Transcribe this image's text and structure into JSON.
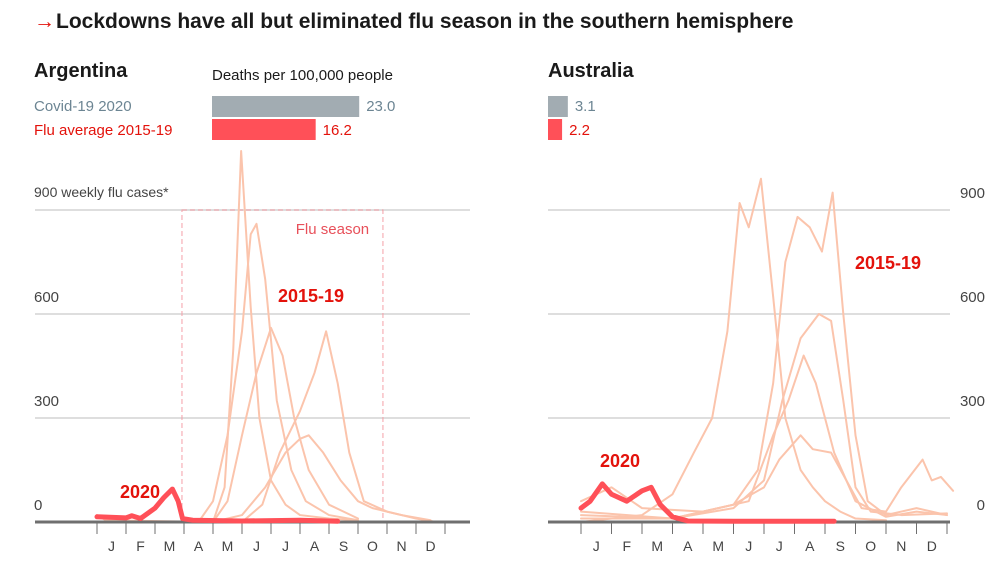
{
  "title": "Lockdowns have all but eliminated flu season in the southern hemisphere",
  "colors": {
    "covid": "#a2acb2",
    "covid_text": "#6c8593",
    "flu": "#ff5058",
    "flu_text": "#e3120b",
    "past": "#fbc4ac",
    "grid": "#dedede",
    "axis": "#6f6f6f"
  },
  "deaths_heading": "Deaths per 100,000 people",
  "legend": {
    "covid": "Covid-19 2020",
    "flu": "Flu average 2015-19"
  },
  "y_caption": "900 weekly flu cases*",
  "chart_data": [
    {
      "type": "line",
      "country": "Argentina",
      "deaths": {
        "covid": 23.0,
        "covid_label": "23.0",
        "flu": 16.2,
        "flu_label": "16.2"
      },
      "ylim": [
        0,
        1100
      ],
      "yticks": [
        "0",
        "300",
        "600",
        "900"
      ],
      "months": [
        "J",
        "F",
        "M",
        "A",
        "M",
        "J",
        "J",
        "A",
        "S",
        "O",
        "N",
        "D"
      ],
      "flu_season": {
        "label": "Flu season",
        "range": [
          2.93,
          9.86
        ]
      },
      "labels": {
        "past": "2015-19",
        "current": "2020"
      },
      "past_series": [
        [
          [
            0,
            20
          ],
          [
            0.3,
            5
          ],
          [
            4,
            0
          ],
          [
            4.4,
            100
          ],
          [
            4.7,
            500
          ],
          [
            4.97,
            1070
          ],
          [
            5.3,
            620
          ],
          [
            5.6,
            300
          ],
          [
            6,
            120
          ],
          [
            6.5,
            50
          ],
          [
            7,
            20
          ],
          [
            8,
            10
          ],
          [
            9,
            5
          ]
        ],
        [
          [
            3.5,
            0
          ],
          [
            4,
            60
          ],
          [
            4.5,
            250
          ],
          [
            5,
            550
          ],
          [
            5.3,
            830
          ],
          [
            5.5,
            860
          ],
          [
            5.8,
            700
          ],
          [
            6.2,
            350
          ],
          [
            6.7,
            150
          ],
          [
            7.2,
            60
          ],
          [
            8,
            20
          ],
          [
            9,
            5
          ]
        ],
        [
          [
            4,
            0
          ],
          [
            4.5,
            60
          ],
          [
            5,
            250
          ],
          [
            5.5,
            430
          ],
          [
            6,
            560
          ],
          [
            6.4,
            480
          ],
          [
            6.8,
            300
          ],
          [
            7.3,
            150
          ],
          [
            8,
            50
          ],
          [
            9,
            10
          ]
        ],
        [
          [
            5,
            0
          ],
          [
            5.7,
            50
          ],
          [
            6.3,
            200
          ],
          [
            7,
            320
          ],
          [
            7.5,
            430
          ],
          [
            7.9,
            550
          ],
          [
            8.3,
            400
          ],
          [
            8.7,
            200
          ],
          [
            9.2,
            60
          ],
          [
            10,
            30
          ],
          [
            11,
            10
          ],
          [
            11.7,
            0
          ]
        ],
        [
          [
            4,
            0
          ],
          [
            5,
            20
          ],
          [
            5.8,
            100
          ],
          [
            6.5,
            200
          ],
          [
            7,
            240
          ],
          [
            7.3,
            250
          ],
          [
            7.8,
            200
          ],
          [
            8.4,
            120
          ],
          [
            9,
            60
          ],
          [
            9.5,
            40
          ],
          [
            10.5,
            20
          ],
          [
            11.5,
            5
          ]
        ]
      ],
      "current_series": [
        [
          0,
          15
        ],
        [
          1,
          12
        ],
        [
          1.2,
          18
        ],
        [
          1.5,
          10
        ],
        [
          2,
          40
        ],
        [
          2.3,
          70
        ],
        [
          2.6,
          95
        ],
        [
          2.8,
          60
        ],
        [
          2.95,
          10
        ],
        [
          3.3,
          5
        ],
        [
          5,
          3
        ],
        [
          7,
          5
        ],
        [
          8.3,
          2
        ]
      ]
    },
    {
      "type": "line",
      "country": "Australia",
      "deaths": {
        "covid": 3.1,
        "covid_label": "3.1",
        "flu": 2.2,
        "flu_label": "2.2"
      },
      "ylim": [
        0,
        1100
      ],
      "yticks": [
        "0",
        "300",
        "600",
        "900"
      ],
      "months": [
        "J",
        "F",
        "M",
        "A",
        "M",
        "J",
        "J",
        "A",
        "S",
        "O",
        "N",
        "D"
      ],
      "labels": {
        "past": "2015-19",
        "current": "2020"
      },
      "past_series": [
        [
          [
            0,
            0
          ],
          [
            2,
            20
          ],
          [
            3,
            80
          ],
          [
            3.7,
            200
          ],
          [
            4.3,
            300
          ],
          [
            4.8,
            550
          ],
          [
            5.2,
            920
          ],
          [
            5.5,
            850
          ],
          [
            5.9,
            990
          ],
          [
            6.3,
            650
          ],
          [
            6.7,
            300
          ],
          [
            7.2,
            150
          ],
          [
            7.6,
            100
          ],
          [
            8,
            60
          ],
          [
            8.5,
            30
          ],
          [
            9,
            10
          ],
          [
            10,
            5
          ]
        ],
        [
          [
            0,
            60
          ],
          [
            1,
            100
          ],
          [
            2,
            40
          ],
          [
            4,
            30
          ],
          [
            5,
            50
          ],
          [
            5.8,
            150
          ],
          [
            6.3,
            400
          ],
          [
            6.7,
            750
          ],
          [
            7.1,
            880
          ],
          [
            7.5,
            850
          ],
          [
            7.9,
            780
          ],
          [
            8.25,
            950
          ],
          [
            8.6,
            600
          ],
          [
            9,
            250
          ],
          [
            9.4,
            60
          ],
          [
            10,
            20
          ],
          [
            11,
            40
          ],
          [
            12,
            20
          ]
        ],
        [
          [
            0,
            20
          ],
          [
            3,
            10
          ],
          [
            5,
            40
          ],
          [
            6,
            120
          ],
          [
            6.6,
            350
          ],
          [
            7.2,
            530
          ],
          [
            7.8,
            600
          ],
          [
            8.2,
            580
          ],
          [
            8.6,
            350
          ],
          [
            9,
            100
          ],
          [
            9.5,
            30
          ],
          [
            10.5,
            20
          ],
          [
            12,
            25
          ]
        ],
        [
          [
            0,
            30
          ],
          [
            3,
            10
          ],
          [
            5,
            50
          ],
          [
            6,
            100
          ],
          [
            6.5,
            180
          ],
          [
            7.2,
            250
          ],
          [
            7.6,
            210
          ],
          [
            8.2,
            200
          ],
          [
            8.7,
            120
          ],
          [
            9.2,
            40
          ],
          [
            10,
            30
          ],
          [
            10.5,
            100
          ],
          [
            11.2,
            180
          ],
          [
            11.5,
            120
          ],
          [
            11.8,
            130
          ],
          [
            12.2,
            90
          ]
        ],
        [
          [
            0,
            10
          ],
          [
            3,
            10
          ],
          [
            5.5,
            60
          ],
          [
            6.3,
            250
          ],
          [
            6.8,
            350
          ],
          [
            7.3,
            480
          ],
          [
            7.7,
            400
          ],
          [
            8.3,
            200
          ],
          [
            9,
            60
          ],
          [
            10,
            15
          ],
          [
            11,
            30
          ],
          [
            12,
            20
          ]
        ]
      ],
      "current_series": [
        [
          0,
          40
        ],
        [
          0.3,
          60
        ],
        [
          0.7,
          110
        ],
        [
          1,
          80
        ],
        [
          1.5,
          60
        ],
        [
          2,
          90
        ],
        [
          2.3,
          100
        ],
        [
          2.6,
          50
        ],
        [
          3,
          15
        ],
        [
          3.5,
          3
        ],
        [
          5,
          2
        ],
        [
          8.3,
          2
        ]
      ]
    }
  ]
}
